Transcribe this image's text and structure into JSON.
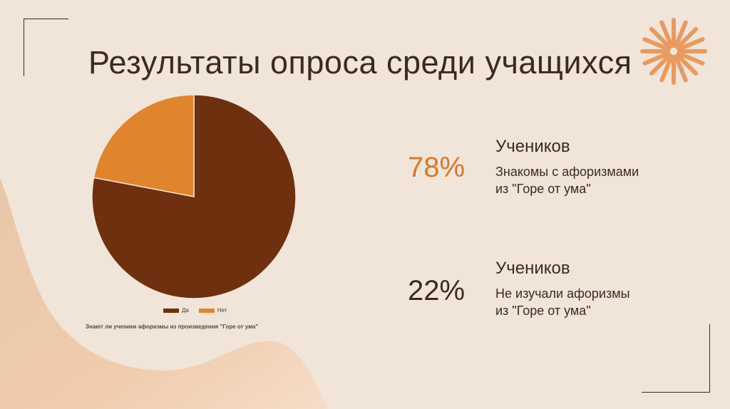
{
  "title": "Результаты опроса среди учащихся",
  "chart_data": {
    "type": "pie",
    "title": "Знают ли ученики афоризмы из произведения \"Горе от ума\"",
    "categories": [
      "Да",
      "Нет"
    ],
    "values": [
      78,
      22
    ],
    "colors": [
      "#6e300e",
      "#e0842d"
    ],
    "legend_position": "bottom"
  },
  "stats": [
    {
      "percent": "78%",
      "heading": "Учеников",
      "line1": "Знакомы с афоризмами",
      "line2": "из \"Горе от ума\"",
      "color": "#d9782a"
    },
    {
      "percent": "22%",
      "heading": "Учеников",
      "line1": "Не изучали афоризмы",
      "line2": "из \"Горе от ума\"",
      "color": "#3b2a1f"
    }
  ]
}
